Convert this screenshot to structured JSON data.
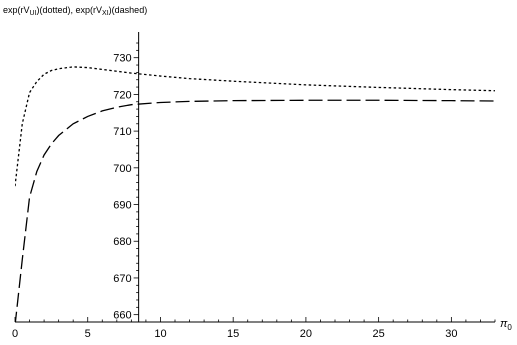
{
  "chart_data": {
    "type": "line",
    "title": {
      "prefix1": "exp(rV",
      "sub1": "UI",
      "suffix1": ")(dotted), exp(rV",
      "sub2": "XI",
      "suffix2": ")(dashed)"
    },
    "xlabel": {
      "main": "π",
      "sub": "0"
    },
    "ylabel": "",
    "xlim": [
      0,
      33
    ],
    "ylim": [
      658,
      737
    ],
    "axis_cross_x": 8.5,
    "x_ticks": [
      0,
      5,
      10,
      15,
      20,
      25,
      30
    ],
    "y_ticks": [
      660,
      670,
      680,
      690,
      700,
      710,
      720,
      730
    ],
    "grid": false,
    "series": [
      {
        "style": "dotted",
        "x": [
          0,
          0.5,
          1,
          1.5,
          2,
          2.5,
          3,
          4,
          5,
          6,
          7,
          8,
          10,
          12,
          15,
          20,
          25,
          30,
          33
        ],
        "y": [
          695,
          712,
          720.5,
          723.5,
          725.5,
          726.5,
          727,
          727.5,
          727.3,
          726.8,
          726.3,
          725.8,
          725,
          724.3,
          723.6,
          722.6,
          721.9,
          721.3,
          721
        ]
      },
      {
        "style": "dashed",
        "x": [
          0,
          0.5,
          1,
          1.5,
          2,
          2.5,
          3,
          4,
          5,
          6,
          7,
          8,
          10,
          12,
          15,
          20,
          25,
          30,
          33
        ],
        "y": [
          657,
          675,
          692,
          699,
          703.5,
          706.5,
          708.8,
          712,
          714,
          715.5,
          716.5,
          717.2,
          717.8,
          718.1,
          718.3,
          718.4,
          718.4,
          718.3,
          718.2
        ]
      }
    ]
  }
}
